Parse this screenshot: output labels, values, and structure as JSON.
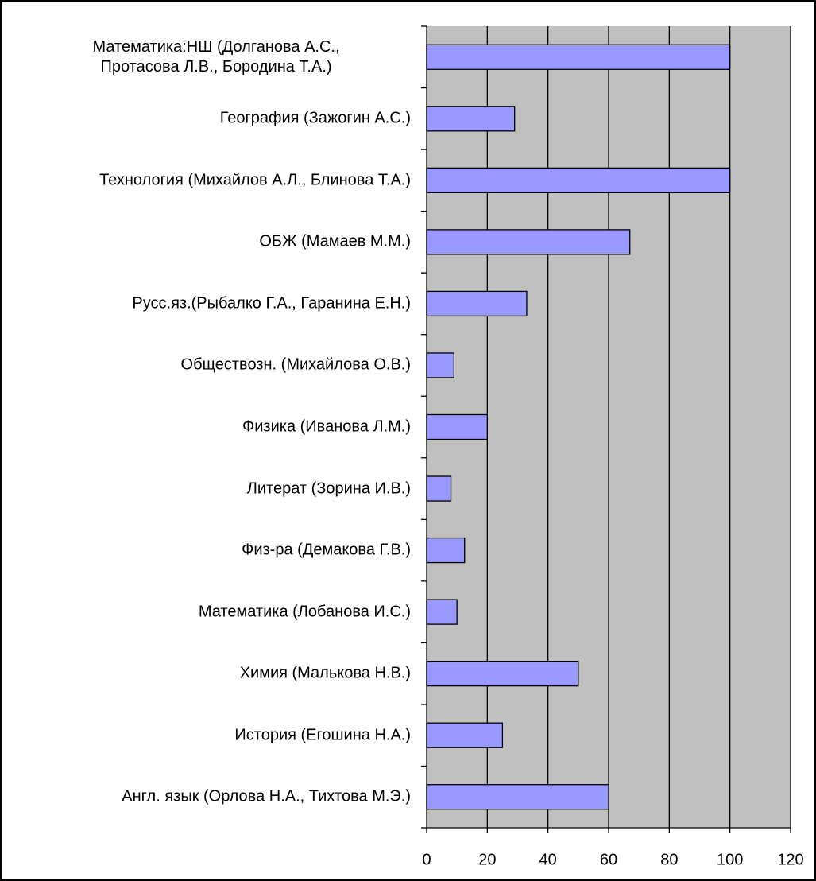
{
  "chart_data": {
    "type": "bar",
    "orientation": "horizontal",
    "categories": [
      "Математика:НШ (Долганова А.С.,\nПротасова Л.В., Бородина Т.А.)",
      "География (Зажогин А.С.)",
      "Технология (Михайлов А.Л., Блинова Т.А.)",
      "ОБЖ (Мамаев М.М.)",
      "Русс.яз.(Рыбалко Г.А., Гаранина Е.Н.)",
      "Обществозн. (Михайлова О.В.)",
      "Физика (Иванова Л.М.)",
      "Литерат (Зорина И.В.)",
      "Физ-ра (Демакова Г.В.)",
      "Математика (Лобанова И.С.)",
      "Химия (Малькова Н.В.)",
      "История (Егошина Н.А.)",
      "Англ. язык (Орлова Н.А., Тихтова М.Э.)"
    ],
    "values": [
      100,
      29,
      100,
      67,
      33,
      9,
      20,
      8,
      12.5,
      10,
      50,
      25,
      60
    ],
    "color": "#9999ff",
    "xlim": [
      0,
      120
    ],
    "xticks": [
      0,
      20,
      40,
      60,
      80,
      100,
      120
    ],
    "grid": true
  }
}
